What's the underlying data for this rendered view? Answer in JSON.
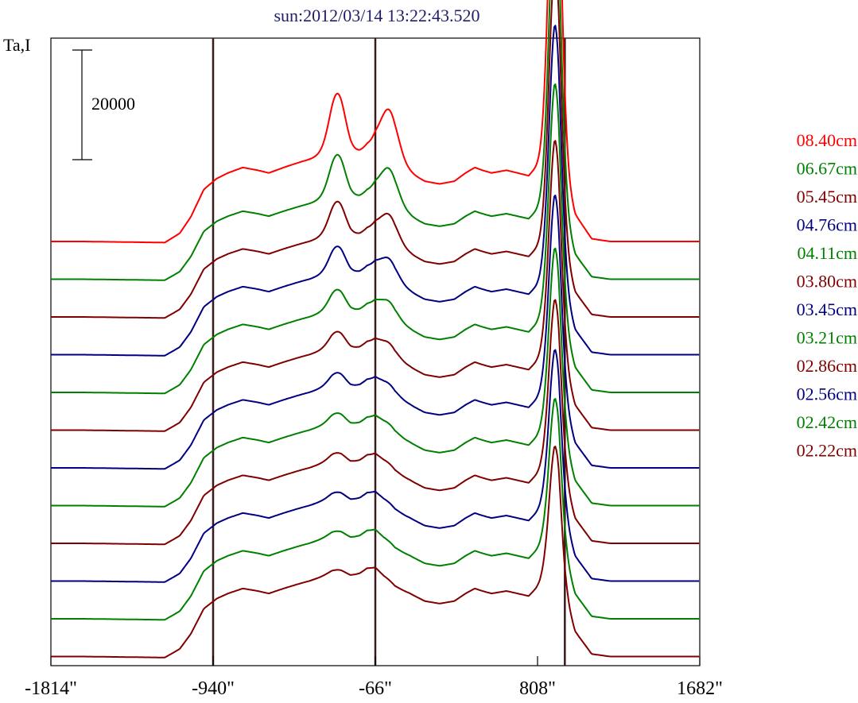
{
  "chart_data": {
    "type": "line",
    "title": "sun:2012/03/14 13:22:43.520",
    "ylabel": "Ta,I",
    "scale_bar_label": "20000",
    "scale_bar_value": 20000,
    "xlim": [
      -1814,
      1682
    ],
    "x_ticks": [
      {
        "value": -1814,
        "label": "-1814\""
      },
      {
        "value": -940,
        "label": "-940\""
      },
      {
        "value": -66,
        "label": "-66\""
      },
      {
        "value": 808,
        "label": "808\""
      },
      {
        "value": 1682,
        "label": "1682\""
      }
    ],
    "vertical_markers": [
      -940,
      -66,
      955
    ],
    "series": [
      {
        "name": "08.40cm",
        "color": "#ff0000",
        "baseline": 0,
        "scale": 1.0
      },
      {
        "name": "06.67cm",
        "color": "#008000",
        "baseline": 0,
        "scale": 0.82
      },
      {
        "name": "05.45cm",
        "color": "#800000",
        "baseline": 0,
        "scale": 0.72
      },
      {
        "name": "04.76cm",
        "color": "#000080",
        "baseline": 0,
        "scale": 0.64
      },
      {
        "name": "04.11cm",
        "color": "#008000",
        "baseline": 0,
        "scale": 0.56
      },
      {
        "name": "03.80cm",
        "color": "#800000",
        "baseline": 0,
        "scale": 0.5
      },
      {
        "name": "03.45cm",
        "color": "#000080",
        "baseline": 0,
        "scale": 0.45
      },
      {
        "name": "03.21cm",
        "color": "#008000",
        "baseline": 0,
        "scale": 0.41
      },
      {
        "name": "02.86cm",
        "color": "#800000",
        "baseline": 0,
        "scale": 0.37
      },
      {
        "name": "02.56cm",
        "color": "#000080",
        "baseline": 0,
        "scale": 0.33
      },
      {
        "name": "02.42cm",
        "color": "#008000",
        "baseline": 0,
        "scale": 0.3
      },
      {
        "name": "02.22cm",
        "color": "#800000",
        "baseline": 0,
        "scale": 0.27
      }
    ],
    "profile_x": [
      -1814,
      -1720,
      -1640,
      -1200,
      -1120,
      -1060,
      -990,
      -920,
      -860,
      -780,
      -700,
      -640,
      -560,
      -470,
      -420,
      -380,
      -340,
      -300,
      -250,
      -200,
      -150,
      -110,
      -66,
      -20,
      40,
      120,
      200,
      280,
      360,
      420,
      470,
      510,
      560,
      640,
      700,
      760,
      800,
      820,
      840,
      860,
      880,
      900,
      920,
      950,
      980,
      1010,
      1060,
      1100,
      1200,
      1400,
      1600,
      1640,
      1682
    ],
    "profile_flux": [
      0,
      0,
      0,
      -200,
      1500,
      4500,
      9500,
      11500,
      12500,
      13500,
      13000,
      12500,
      13500,
      14500,
      15000,
      15500,
      16000,
      16500,
      16500,
      16000,
      16500,
      17500,
      17500,
      15500,
      13500,
      12500,
      11000,
      10500,
      11000,
      12500,
      13500,
      13000,
      12500,
      13000,
      12500,
      12000,
      13500,
      14500,
      16000,
      18000,
      21500,
      24000,
      23000,
      14000,
      9000,
      5000,
      2500,
      500,
      0,
      0,
      0,
      0,
      0
    ],
    "peaks": [
      {
        "x": -270,
        "height": 10500,
        "width": 42
      },
      {
        "x": 10,
        "height": 9500,
        "width": 48
      },
      {
        "x": 902,
        "height": 57000,
        "width": 32
      }
    ]
  }
}
